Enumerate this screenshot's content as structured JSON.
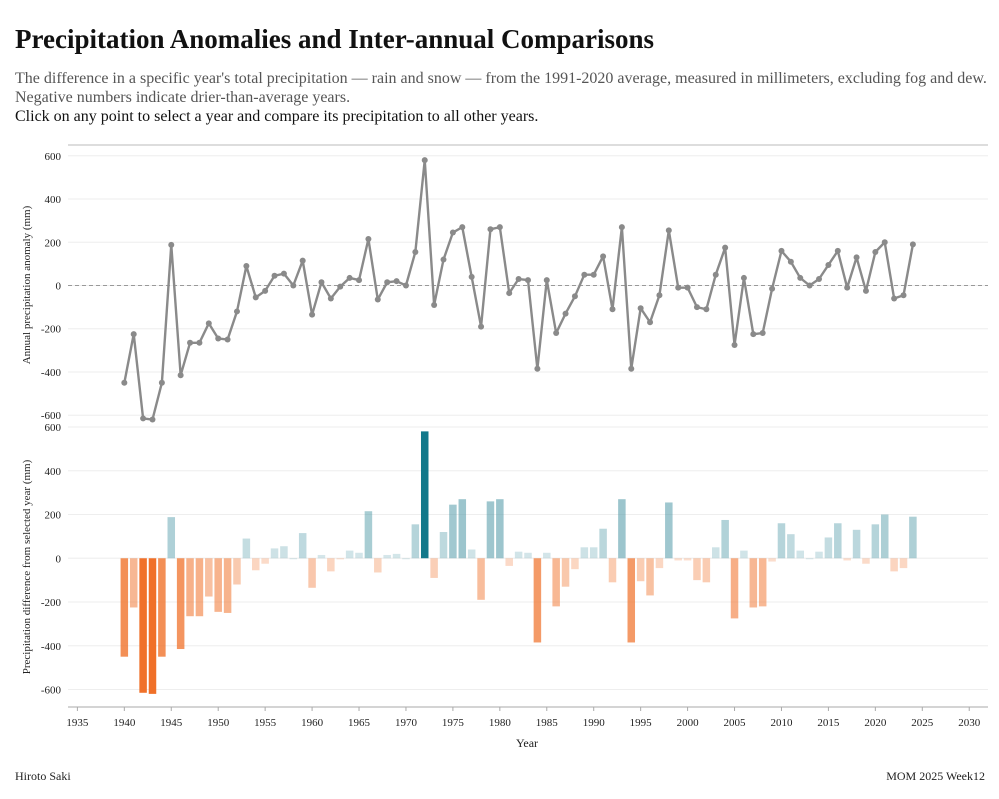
{
  "header": {
    "title": "Precipitation Anomalies and Inter-annual Comparisons",
    "subtitle": "The difference in a specific year's total precipitation — rain and snow — from the 1991-2020 average, measured in millimeters, excluding fog and dew. Negative numbers indicate drier-than-average years.",
    "instruction": "Click on any point to select a year and compare its precipitation to all other years."
  },
  "footer": {
    "author": "Hiroto Saki",
    "source": "MOM 2025 Week12"
  },
  "colors": {
    "line": "#8a8a8a",
    "selected": "#11788a",
    "wet": "#4e98a6",
    "dry": "#f07028",
    "zero_line": "#999999",
    "grid": "#eeeeee"
  },
  "chart_data": [
    {
      "type": "line",
      "ylabel": "Annual precipitation anomaly (mm)",
      "ylim": [
        -650,
        650
      ],
      "yticks": [
        -600,
        -400,
        -200,
        0,
        200,
        400,
        600
      ],
      "xlim": [
        1934,
        2032
      ],
      "grid": true,
      "x": [
        1940,
        1941,
        1942,
        1943,
        1944,
        1945,
        1946,
        1947,
        1948,
        1949,
        1950,
        1951,
        1952,
        1953,
        1954,
        1955,
        1956,
        1957,
        1958,
        1959,
        1960,
        1961,
        1962,
        1963,
        1964,
        1965,
        1966,
        1967,
        1968,
        1969,
        1970,
        1971,
        1972,
        1973,
        1974,
        1975,
        1976,
        1977,
        1978,
        1979,
        1980,
        1981,
        1982,
        1983,
        1984,
        1985,
        1986,
        1987,
        1988,
        1989,
        1990,
        1991,
        1992,
        1993,
        1994,
        1995,
        1996,
        1997,
        1998,
        1999,
        2000,
        2001,
        2002,
        2003,
        2004,
        2005,
        2006,
        2007,
        2008,
        2009,
        2010,
        2011,
        2012,
        2013,
        2014,
        2015,
        2016,
        2017,
        2018,
        2019,
        2020,
        2021,
        2022,
        2023,
        2024
      ],
      "values": [
        -450,
        -225,
        -615,
        -620,
        -450,
        188,
        -415,
        -265,
        -265,
        -175,
        -245,
        -250,
        -120,
        90,
        -55,
        -25,
        45,
        55,
        0,
        115,
        -135,
        15,
        -60,
        -5,
        35,
        25,
        215,
        -65,
        15,
        20,
        0,
        155,
        580,
        -90,
        120,
        245,
        270,
        40,
        -190,
        260,
        270,
        -35,
        30,
        25,
        -385,
        25,
        -220,
        -130,
        -50,
        50,
        50,
        135,
        -110,
        270,
        -385,
        -105,
        -170,
        -45,
        255,
        -10,
        -10,
        -100,
        -110,
        50,
        175,
        -275,
        35,
        -225,
        -220,
        -15,
        160,
        110,
        35,
        0,
        30,
        95,
        160,
        -10,
        130,
        -25,
        155,
        200,
        -60,
        -45,
        190
      ]
    },
    {
      "type": "bar",
      "ylabel": "Precipitation difference from selected year (mm)",
      "xlabel": "Year",
      "ylim": [
        -680,
        600
      ],
      "yticks": [
        -600,
        -400,
        -200,
        0,
        200,
        400,
        600
      ],
      "xticks": [
        1935,
        1940,
        1945,
        1950,
        1955,
        1960,
        1965,
        1970,
        1975,
        1980,
        1985,
        1990,
        1995,
        2000,
        2005,
        2010,
        2015,
        2020,
        2025,
        2030
      ],
      "selected_year": 1972,
      "grid": true
    }
  ]
}
